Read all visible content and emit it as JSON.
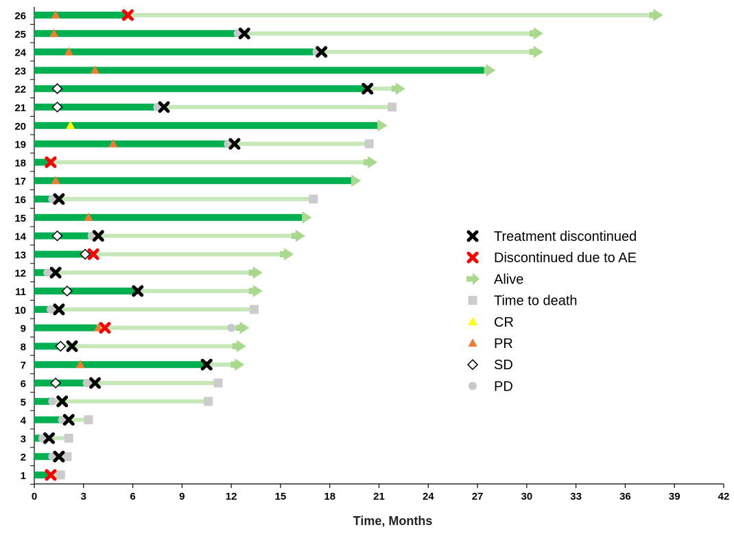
{
  "chart_data": {
    "type": "swimmer",
    "title": "",
    "xlabel": "Time, Months",
    "ylabel": "",
    "xlim": [
      0,
      42
    ],
    "x_ticks": [
      0,
      3,
      6,
      9,
      12,
      15,
      18,
      21,
      24,
      27,
      30,
      33,
      36,
      39,
      42
    ],
    "grid": false,
    "legend_position": "right",
    "colors": {
      "treatment_bar": "#00b050",
      "alive_arrow": "#c6e8b8",
      "alive_arrow_head": "#a9d98f",
      "treatment_discontinued": "#000000",
      "discontinued_ae": "#ff0000",
      "time_to_death": "#cccccc",
      "cr": "#ffff00",
      "pr": "#ed7d31",
      "sd": "#ffffff",
      "pd": "#c8c8c8"
    },
    "legend": [
      {
        "key": "treatment_discontinued",
        "label": "Treatment discontinued"
      },
      {
        "key": "discontinued_ae",
        "label": "Discontinued due to AE"
      },
      {
        "key": "alive",
        "label": "Alive"
      },
      {
        "key": "death",
        "label": "Time to death"
      },
      {
        "key": "cr",
        "label": "CR"
      },
      {
        "key": "pr",
        "label": "PR"
      },
      {
        "key": "sd",
        "label": "SD"
      },
      {
        "key": "pd",
        "label": "PD"
      }
    ],
    "patients": [
      {
        "id": "26",
        "treatment": 5.7,
        "followup": 38.3,
        "status": "alive",
        "response": {
          "type": "pr",
          "time": 1.3
        },
        "pd": null,
        "discontinued": {
          "type": "ae",
          "time": 5.7
        }
      },
      {
        "id": "25",
        "treatment": 12.3,
        "followup": 31.0,
        "status": "alive",
        "response": {
          "type": "pr",
          "time": 1.2
        },
        "pd": 12.4,
        "discontinued": {
          "type": "treatment",
          "time": 12.8
        }
      },
      {
        "id": "24",
        "treatment": 17.0,
        "followup": 31.0,
        "status": "alive",
        "response": {
          "type": "pr",
          "time": 2.1
        },
        "pd": 17.2,
        "discontinued": {
          "type": "treatment",
          "time": 17.5
        }
      },
      {
        "id": "23",
        "treatment": 27.4,
        "followup": 28.1,
        "status": "alive",
        "response": {
          "type": "pr",
          "time": 3.7
        },
        "pd": null,
        "discontinued": null
      },
      {
        "id": "22",
        "treatment": 20.3,
        "followup": 22.6,
        "status": "alive",
        "response": {
          "type": "sd",
          "time": 1.4
        },
        "pd": null,
        "discontinued": {
          "type": "treatment",
          "time": 20.3
        }
      },
      {
        "id": "21",
        "treatment": 7.3,
        "followup": 21.8,
        "status": "death",
        "response": {
          "type": "sd",
          "time": 1.4
        },
        "pd": 7.5,
        "discontinued": {
          "type": "treatment",
          "time": 7.9
        }
      },
      {
        "id": "20",
        "treatment": 20.9,
        "followup": 21.5,
        "status": "alive",
        "response": {
          "type": "cr",
          "time": 2.2
        },
        "pd": null,
        "discontinued": null
      },
      {
        "id": "19",
        "treatment": 11.7,
        "followup": 20.4,
        "status": "death",
        "response": {
          "type": "pr",
          "time": 4.8
        },
        "pd": 11.8,
        "discontinued": {
          "type": "treatment",
          "time": 12.2
        }
      },
      {
        "id": "18",
        "treatment": 1.0,
        "followup": 20.9,
        "status": "alive",
        "response": null,
        "pd": null,
        "discontinued": {
          "type": "ae",
          "time": 1.0
        }
      },
      {
        "id": "17",
        "treatment": 19.3,
        "followup": 19.9,
        "status": "alive",
        "response": {
          "type": "pr",
          "time": 1.3
        },
        "pd": null,
        "discontinued": null
      },
      {
        "id": "16",
        "treatment": 1.0,
        "followup": 17.0,
        "status": "death",
        "response": null,
        "pd": 1.1,
        "discontinued": {
          "type": "treatment",
          "time": 1.5
        }
      },
      {
        "id": "15",
        "treatment": 16.3,
        "followup": 16.9,
        "status": "alive",
        "response": {
          "type": "pr",
          "time": 3.3
        },
        "pd": null,
        "discontinued": null
      },
      {
        "id": "14",
        "treatment": 3.3,
        "followup": 16.5,
        "status": "alive",
        "response": {
          "type": "sd",
          "time": 1.4
        },
        "pd": 3.5,
        "discontinued": {
          "type": "treatment",
          "time": 3.9
        }
      },
      {
        "id": "13",
        "treatment": 3.1,
        "followup": 15.8,
        "status": "alive",
        "response": {
          "type": "sd",
          "time": 3.1
        },
        "pd": null,
        "discontinued": {
          "type": "ae",
          "time": 3.6
        }
      },
      {
        "id": "12",
        "treatment": 0.8,
        "followup": 13.9,
        "status": "alive",
        "response": null,
        "pd": 0.8,
        "discontinued": {
          "type": "treatment",
          "time": 1.3
        }
      },
      {
        "id": "11",
        "treatment": 6.3,
        "followup": 13.9,
        "status": "alive",
        "response": {
          "type": "sd",
          "time": 2.0
        },
        "pd": null,
        "discontinued": {
          "type": "treatment",
          "time": 6.3
        }
      },
      {
        "id": "10",
        "treatment": 0.9,
        "followup": 13.4,
        "status": "death",
        "response": null,
        "pd": 1.0,
        "discontinued": {
          "type": "treatment",
          "time": 1.5
        }
      },
      {
        "id": "9",
        "treatment": 3.8,
        "followup": 13.1,
        "status": "alive",
        "response": {
          "type": "pr",
          "time": 3.9
        },
        "pd": 12.0,
        "discontinued": {
          "type": "ae",
          "time": 4.3
        }
      },
      {
        "id": "8",
        "treatment": 1.5,
        "followup": 12.9,
        "status": "alive",
        "response": {
          "type": "sd",
          "time": 1.6
        },
        "pd": null,
        "discontinued": {
          "type": "treatment",
          "time": 2.3
        }
      },
      {
        "id": "7",
        "treatment": 10.5,
        "followup": 12.8,
        "status": "alive",
        "response": {
          "type": "pr",
          "time": 2.8
        },
        "pd": null,
        "discontinued": {
          "type": "treatment",
          "time": 10.5
        }
      },
      {
        "id": "6",
        "treatment": 3.1,
        "followup": 11.2,
        "status": "death",
        "response": {
          "type": "sd",
          "time": 1.3
        },
        "pd": 3.2,
        "discontinued": {
          "type": "treatment",
          "time": 3.7
        }
      },
      {
        "id": "5",
        "treatment": 1.0,
        "followup": 10.6,
        "status": "death",
        "response": null,
        "pd": 1.1,
        "discontinued": {
          "type": "treatment",
          "time": 1.7
        }
      },
      {
        "id": "4",
        "treatment": 1.6,
        "followup": 3.3,
        "status": "death",
        "response": null,
        "pd": 1.7,
        "discontinued": {
          "type": "treatment",
          "time": 2.1
        }
      },
      {
        "id": "3",
        "treatment": 0.5,
        "followup": 2.1,
        "status": "death",
        "response": null,
        "pd": 0.5,
        "discontinued": {
          "type": "treatment",
          "time": 0.9
        }
      },
      {
        "id": "2",
        "treatment": 1.0,
        "followup": 2.0,
        "status": "death",
        "response": null,
        "pd": 1.1,
        "discontinued": {
          "type": "treatment",
          "time": 1.5
        }
      },
      {
        "id": "1",
        "treatment": 0.9,
        "followup": 1.6,
        "status": "death",
        "response": null,
        "pd": null,
        "discontinued": {
          "type": "ae",
          "time": 1.0
        }
      }
    ]
  }
}
